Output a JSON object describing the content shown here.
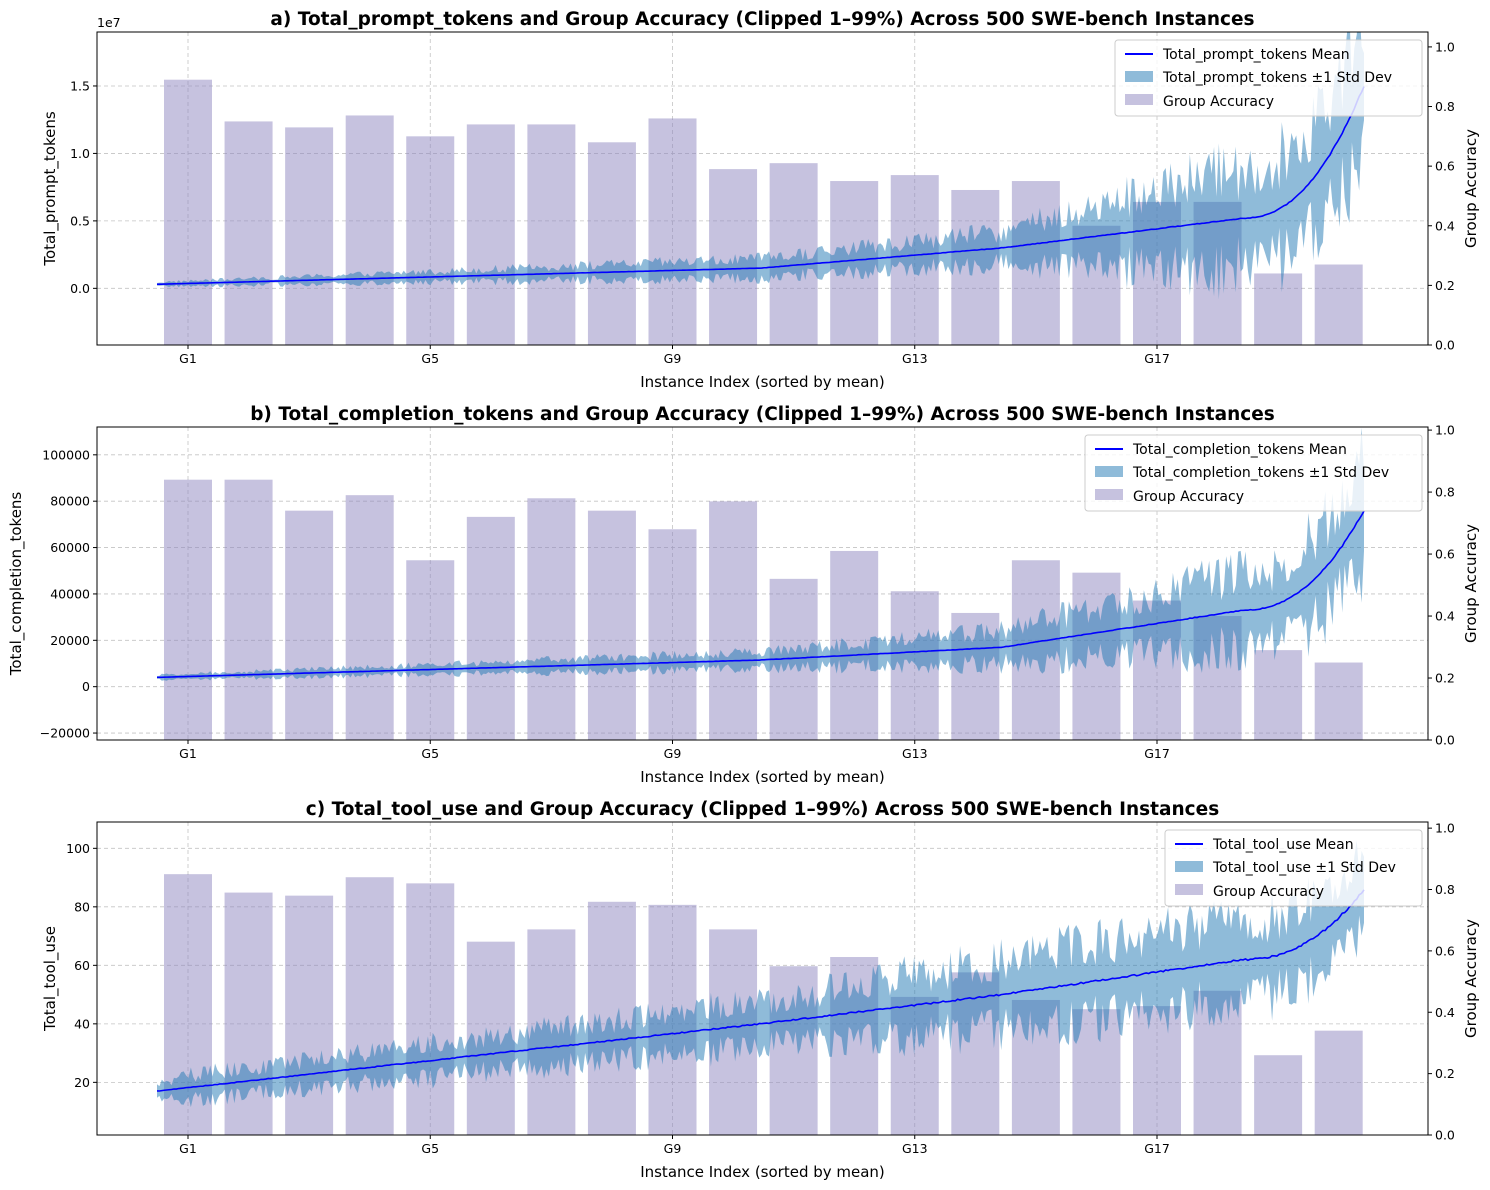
{
  "figure": {
    "xlabel": "Instance Index (sorted by mean)",
    "ylabel_right": "Group Accuracy",
    "legend_bar_label": "Group Accuracy",
    "colors": {
      "mean_line": "#0000ff",
      "band": "#1f77b4",
      "bar": "#8e86bf"
    }
  },
  "chart_data": [
    {
      "type": "line",
      "title": "a) Total_prompt_tokens and Group Accuracy (Clipped 1–99%) Across 500 SWE-bench Instances",
      "metric": "Total_prompt_tokens",
      "ylabel": "Total_prompt_tokens",
      "y_scale_note": "1e7",
      "ylim": [
        -0.42,
        1.9
      ],
      "yticks": [
        0.0,
        0.5,
        1.0,
        1.5
      ],
      "ytick_labels": [
        "0.0",
        "0.5",
        "1.0",
        "1.5"
      ],
      "legend_mean": "Total_prompt_tokens Mean",
      "legend_std": "Total_prompt_tokens ±1 Std Dev",
      "mean_curve": {
        "n": 500,
        "start": 0.03,
        "mid": 0.15,
        "q3": 0.3,
        "q4": 0.52,
        "end": 1.5
      },
      "std_curve": {
        "start": 0.015,
        "mid": 0.07,
        "q3": 0.12,
        "q4": 0.38,
        "end": 0.5
      },
      "right_ylim": [
        0,
        1.05
      ],
      "right_yticks": [
        0.0,
        0.2,
        0.4,
        0.6,
        0.8,
        1.0
      ],
      "right_ytick_labels": [
        "0.0",
        "0.2",
        "0.4",
        "0.6",
        "0.8",
        "1.0"
      ],
      "groups": [
        "G1",
        "G2",
        "G3",
        "G4",
        "G5",
        "G6",
        "G7",
        "G8",
        "G9",
        "G10",
        "G11",
        "G12",
        "G13",
        "G14",
        "G15",
        "G16",
        "G17",
        "G18",
        "G19",
        "G20"
      ],
      "group_accuracy": [
        0.89,
        0.75,
        0.73,
        0.77,
        0.7,
        0.74,
        0.74,
        0.68,
        0.76,
        0.59,
        0.61,
        0.55,
        0.57,
        0.52,
        0.55,
        0.4,
        0.48,
        0.48,
        0.24,
        0.27
      ],
      "xtick_labels": [
        "G1",
        "G5",
        "G9",
        "G13",
        "G17"
      ],
      "xtick_groups": [
        1,
        5,
        9,
        13,
        17
      ]
    },
    {
      "type": "line",
      "title": "b) Total_completion_tokens and Group Accuracy (Clipped 1–99%) Across 500 SWE-bench Instances",
      "metric": "Total_completion_tokens",
      "ylabel": "Total_completion_tokens",
      "ylim": [
        -23000,
        112000
      ],
      "yticks": [
        -20000,
        0,
        20000,
        40000,
        60000,
        80000,
        100000
      ],
      "ytick_labels": [
        "−20000",
        "0",
        "20000",
        "40000",
        "60000",
        "80000",
        "100000"
      ],
      "legend_mean": "Total_completion_tokens Mean",
      "legend_std": "Total_completion_tokens ±1 Std Dev",
      "mean_curve": {
        "n": 500,
        "start": 4000,
        "mid": 11500,
        "q3": 17000,
        "q4": 33000,
        "end": 76000
      },
      "std_curve": {
        "start": 1000,
        "mid": 3500,
        "q3": 7000,
        "q4": 17000,
        "end": 24000
      },
      "right_ylim": [
        0,
        1.01
      ],
      "right_yticks": [
        0.0,
        0.2,
        0.4,
        0.6,
        0.8,
        1.0
      ],
      "right_ytick_labels": [
        "0.0",
        "0.2",
        "0.4",
        "0.6",
        "0.8",
        "1.0"
      ],
      "groups": [
        "G1",
        "G2",
        "G3",
        "G4",
        "G5",
        "G6",
        "G7",
        "G8",
        "G9",
        "G10",
        "G11",
        "G12",
        "G13",
        "G14",
        "G15",
        "G16",
        "G17",
        "G18",
        "G19",
        "G20"
      ],
      "group_accuracy": [
        0.84,
        0.84,
        0.74,
        0.79,
        0.58,
        0.72,
        0.78,
        0.74,
        0.68,
        0.77,
        0.52,
        0.61,
        0.48,
        0.41,
        0.58,
        0.54,
        0.45,
        0.4,
        0.29,
        0.25
      ],
      "xtick_labels": [
        "G1",
        "G5",
        "G9",
        "G13",
        "G17"
      ],
      "xtick_groups": [
        1,
        5,
        9,
        13,
        17
      ]
    },
    {
      "type": "line",
      "title": "c) Total_tool_use and Group Accuracy (Clipped 1–99%) Across 500 SWE-bench Instances",
      "metric": "Total_tool_use",
      "ylabel": "Total_tool_use",
      "ylim": [
        2,
        109
      ],
      "yticks": [
        20,
        40,
        60,
        80,
        100
      ],
      "ytick_labels": [
        "20",
        "40",
        "60",
        "80",
        "100"
      ],
      "legend_mean": "Total_tool_use Mean",
      "legend_std": "Total_tool_use ±1 Std Dev",
      "mean_curve": {
        "n": 500,
        "start": 17,
        "mid": 40,
        "q3": 50,
        "q4": 62,
        "end": 86
      },
      "std_curve": {
        "start": 4,
        "mid": 8,
        "q3": 12,
        "q4": 14,
        "end": 12
      },
      "right_ylim": [
        0,
        1.02
      ],
      "right_yticks": [
        0.0,
        0.2,
        0.4,
        0.6,
        0.8,
        1.0
      ],
      "right_ytick_labels": [
        "0.0",
        "0.2",
        "0.4",
        "0.6",
        "0.8",
        "1.0"
      ],
      "groups": [
        "G1",
        "G2",
        "G3",
        "G4",
        "G5",
        "G6",
        "G7",
        "G8",
        "G9",
        "G10",
        "G11",
        "G12",
        "G13",
        "G14",
        "G15",
        "G16",
        "G17",
        "G18",
        "G19",
        "G20"
      ],
      "group_accuracy": [
        0.85,
        0.79,
        0.78,
        0.84,
        0.82,
        0.63,
        0.67,
        0.76,
        0.75,
        0.67,
        0.55,
        0.58,
        0.45,
        0.53,
        0.44,
        0.41,
        0.42,
        0.47,
        0.26,
        0.34
      ],
      "xtick_labels": [
        "G1",
        "G5",
        "G9",
        "G13",
        "G17"
      ],
      "xtick_groups": [
        1,
        5,
        9,
        13,
        17
      ]
    }
  ]
}
